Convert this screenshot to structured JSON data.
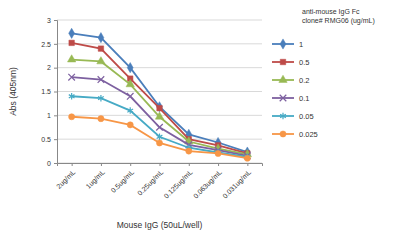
{
  "chart_data": {
    "type": "line",
    "x_label": "Mouse IgG (50uL/well)",
    "y_label": "Abs (405nm)",
    "legend_title": [
      "anti-mouse IgG Fc",
      "clone# RMG06 (ug/mL)"
    ],
    "categories": [
      "2ug/mL",
      "1ug/mL",
      "0.5ug/mL",
      "0.25ug/mL",
      "0.125ug/mL",
      "0.063ug/mL",
      "0.031ug/mL"
    ],
    "series": [
      {
        "name": "1",
        "color": "#4a7ebb",
        "marker": "diamond",
        "values": [
          2.72,
          2.63,
          2.0,
          1.18,
          0.6,
          0.43,
          0.23
        ]
      },
      {
        "name": "0.5",
        "color": "#be4b48",
        "marker": "square",
        "values": [
          2.52,
          2.4,
          1.77,
          1.15,
          0.5,
          0.37,
          0.2
        ]
      },
      {
        "name": "0.2",
        "color": "#98b954",
        "marker": "triangle",
        "values": [
          2.17,
          2.13,
          1.65,
          0.97,
          0.45,
          0.3,
          0.18
        ]
      },
      {
        "name": "0.1",
        "color": "#7d60a0",
        "marker": "x",
        "values": [
          1.8,
          1.75,
          1.4,
          0.75,
          0.38,
          0.27,
          0.15
        ]
      },
      {
        "name": "0.05",
        "color": "#46aac5",
        "marker": "star",
        "values": [
          1.4,
          1.36,
          1.1,
          0.55,
          0.32,
          0.22,
          0.13
        ]
      },
      {
        "name": "0.025",
        "color": "#f79646",
        "marker": "circle",
        "values": [
          0.97,
          0.93,
          0.8,
          0.42,
          0.25,
          0.2,
          0.1
        ]
      }
    ],
    "ylim": [
      0,
      3
    ],
    "yticks": [
      0,
      0.5,
      1,
      1.5,
      2,
      2.5,
      3
    ],
    "grid": true,
    "legend": "right"
  }
}
